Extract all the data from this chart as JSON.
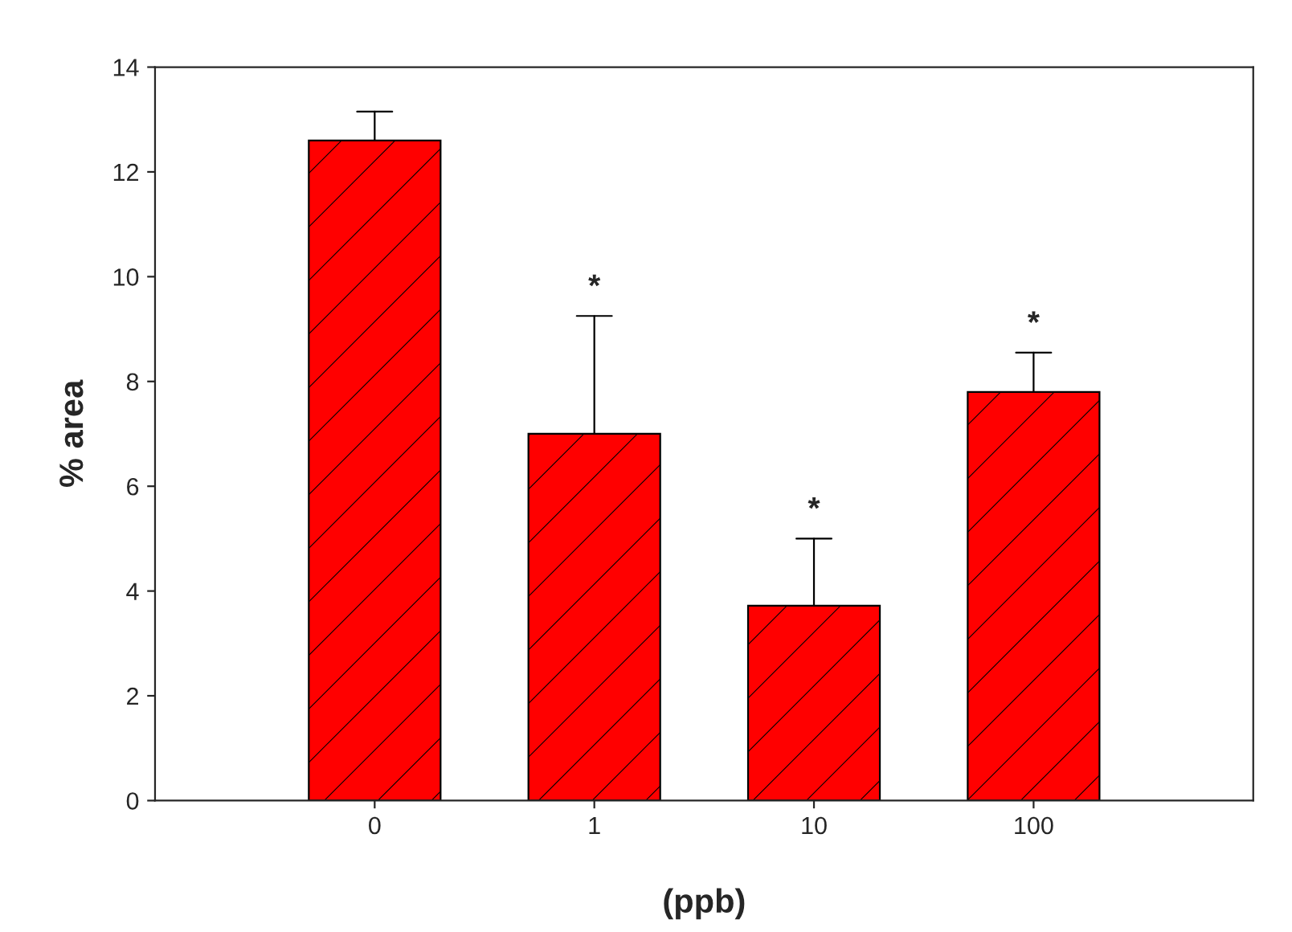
{
  "chart_data": {
    "type": "bar",
    "xlabel": "(ppb)",
    "ylabel": "% area",
    "categories": [
      "0",
      "1",
      "10",
      "100"
    ],
    "series": [
      {
        "color": "#ff0000",
        "values": [
          12.6,
          7.0,
          3.72,
          7.8
        ],
        "errors": [
          [
            12.6,
            13.15
          ],
          [
            7.0,
            9.25
          ],
          [
            3.72,
            5.0
          ],
          [
            7.8,
            8.55
          ]
        ]
      }
    ],
    "ylim": [
      0,
      14
    ],
    "yticks": [
      0,
      2,
      4,
      6,
      8,
      10,
      12,
      14
    ],
    "grid": false,
    "legend": false,
    "annotations": [
      {
        "text": "*",
        "x": "1",
        "y": 9.25
      },
      {
        "text": "*",
        "x": "10",
        "y": 5.0
      },
      {
        "text": "*",
        "x": "100",
        "y": 8.55
      }
    ]
  }
}
